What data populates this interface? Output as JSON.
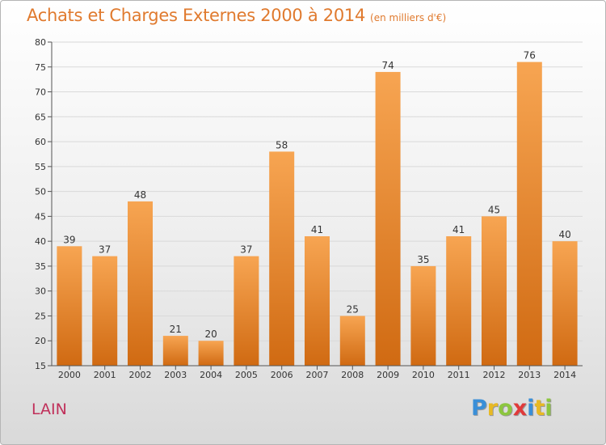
{
  "header": {
    "title": "Achats et Charges Externes 2000 à 2014",
    "unit": "(en milliers d'€)"
  },
  "footer": {
    "location": "LAIN",
    "brand": [
      "P",
      "r",
      "o",
      "x",
      "i",
      "t",
      "i"
    ],
    "brand_colors": [
      "#3a8fd8",
      "#e8b923",
      "#8cc63f",
      "#e03a3a",
      "#3a8fd8",
      "#e8b923",
      "#8cc63f"
    ]
  },
  "colors": {
    "bar_top": "#f7a552",
    "bar_bottom": "#d06a12",
    "grid": "#d9d9d9",
    "axis": "#555555"
  },
  "chart_data": {
    "type": "bar",
    "title": "Achats et Charges Externes 2000 à 2014",
    "categories": [
      "2000",
      "2001",
      "2002",
      "2003",
      "2004",
      "2005",
      "2006",
      "2007",
      "2008",
      "2009",
      "2010",
      "2011",
      "2012",
      "2013",
      "2014"
    ],
    "values": [
      39,
      37,
      48,
      21,
      20,
      37,
      58,
      41,
      25,
      74,
      35,
      41,
      45,
      76,
      40
    ],
    "ylim": [
      15,
      80
    ],
    "yticks": [
      15,
      20,
      25,
      30,
      35,
      40,
      45,
      50,
      55,
      60,
      65,
      70,
      75,
      80
    ],
    "grid": true,
    "xlabel": "",
    "ylabel": ""
  }
}
